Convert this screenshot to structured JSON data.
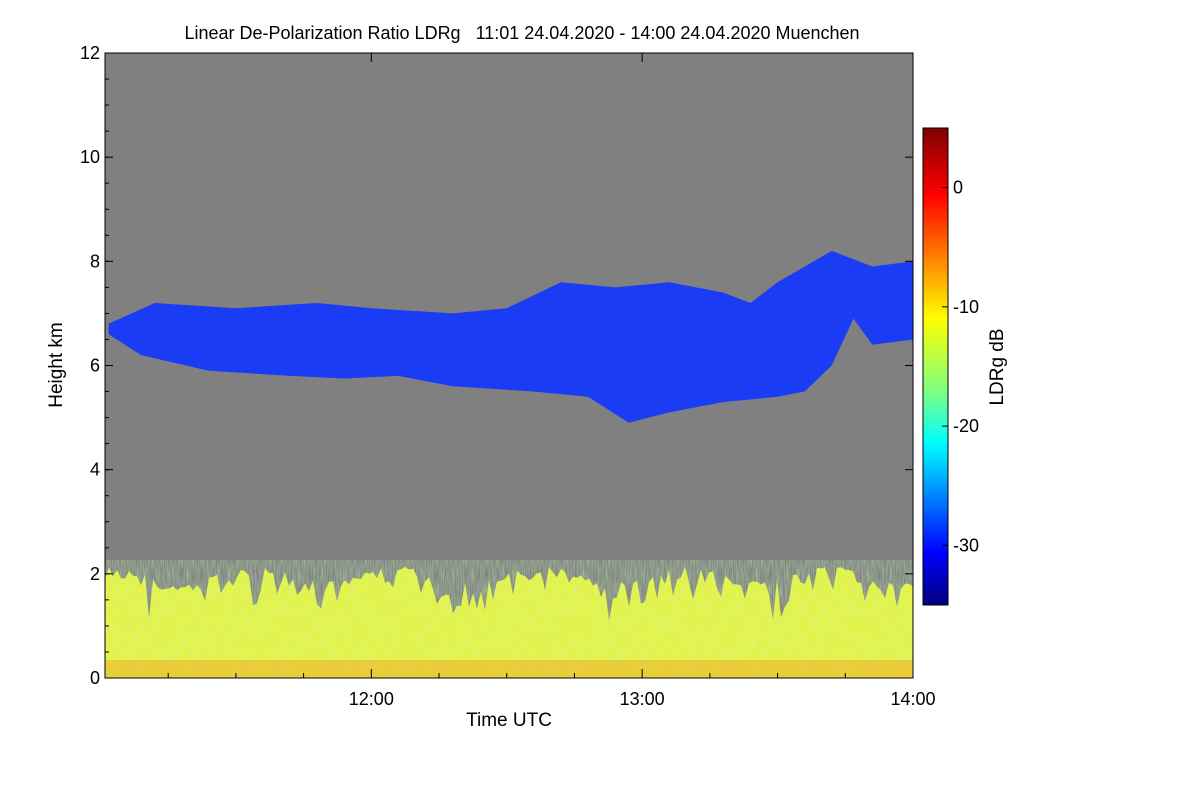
{
  "chart_data": {
    "type": "heatmap",
    "title": "Linear De-Polarization Ratio LDRg   11:01 24.04.2020 - 14:00 24.04.2020 Muenchen",
    "xlabel": "Time UTC",
    "ylabel": "Height km",
    "x_range_hours": [
      11.0167,
      14.0
    ],
    "x_ticks": [
      {
        "value": 12,
        "label": "12:00"
      },
      {
        "value": 13,
        "label": "13:00"
      },
      {
        "value": 14,
        "label": "14:00"
      }
    ],
    "ylim": [
      0,
      12
    ],
    "y_ticks": [
      {
        "value": 0,
        "label": "0"
      },
      {
        "value": 2,
        "label": "2"
      },
      {
        "value": 4,
        "label": "4"
      },
      {
        "value": 6,
        "label": "6"
      },
      {
        "value": 8,
        "label": "8"
      },
      {
        "value": 10,
        "label": "10"
      },
      {
        "value": 12,
        "label": "12"
      }
    ],
    "colorbar": {
      "label": "LDRg dB",
      "range": [
        -35,
        5
      ],
      "ticks": [
        {
          "value": 0,
          "label": "0"
        },
        {
          "value": -10,
          "label": "-10"
        },
        {
          "value": -20,
          "label": "-20"
        },
        {
          "value": -30,
          "label": "-30"
        }
      ],
      "colormap": [
        "#00007f",
        "#0000ff",
        "#007fff",
        "#00ffff",
        "#7fff7f",
        "#ffff00",
        "#ff7f00",
        "#ff0000",
        "#7f0000"
      ]
    },
    "background_color": "#808080",
    "cloud_layer": {
      "ldr_db": -30,
      "color": "#1a3cf5",
      "top_km": [
        [
          11.03,
          6.8
        ],
        [
          11.2,
          7.2
        ],
        [
          11.5,
          7.1
        ],
        [
          11.8,
          7.2
        ],
        [
          12.0,
          7.1
        ],
        [
          12.3,
          7.0
        ],
        [
          12.5,
          7.1
        ],
        [
          12.7,
          7.6
        ],
        [
          12.9,
          7.5
        ],
        [
          13.1,
          7.6
        ],
        [
          13.3,
          7.4
        ],
        [
          13.4,
          7.2
        ],
        [
          13.5,
          7.6
        ],
        [
          13.7,
          8.2
        ],
        [
          13.85,
          7.9
        ],
        [
          14.0,
          8.0
        ]
      ],
      "base_km": [
        [
          11.03,
          6.6
        ],
        [
          11.15,
          6.2
        ],
        [
          11.4,
          5.9
        ],
        [
          11.7,
          5.8
        ],
        [
          11.9,
          5.75
        ],
        [
          12.1,
          5.8
        ],
        [
          12.3,
          5.6
        ],
        [
          12.6,
          5.5
        ],
        [
          12.8,
          5.4
        ],
        [
          12.95,
          4.9
        ],
        [
          13.1,
          5.1
        ],
        [
          13.3,
          5.3
        ],
        [
          13.5,
          5.4
        ],
        [
          13.6,
          5.5
        ],
        [
          13.7,
          6.0
        ],
        [
          13.78,
          6.9
        ],
        [
          13.85,
          6.4
        ],
        [
          14.0,
          6.5
        ]
      ]
    },
    "boundary_layer": {
      "ldr_db": -10,
      "color": "#e8f03c",
      "top_km": 2.0,
      "base_km": 0
    }
  }
}
